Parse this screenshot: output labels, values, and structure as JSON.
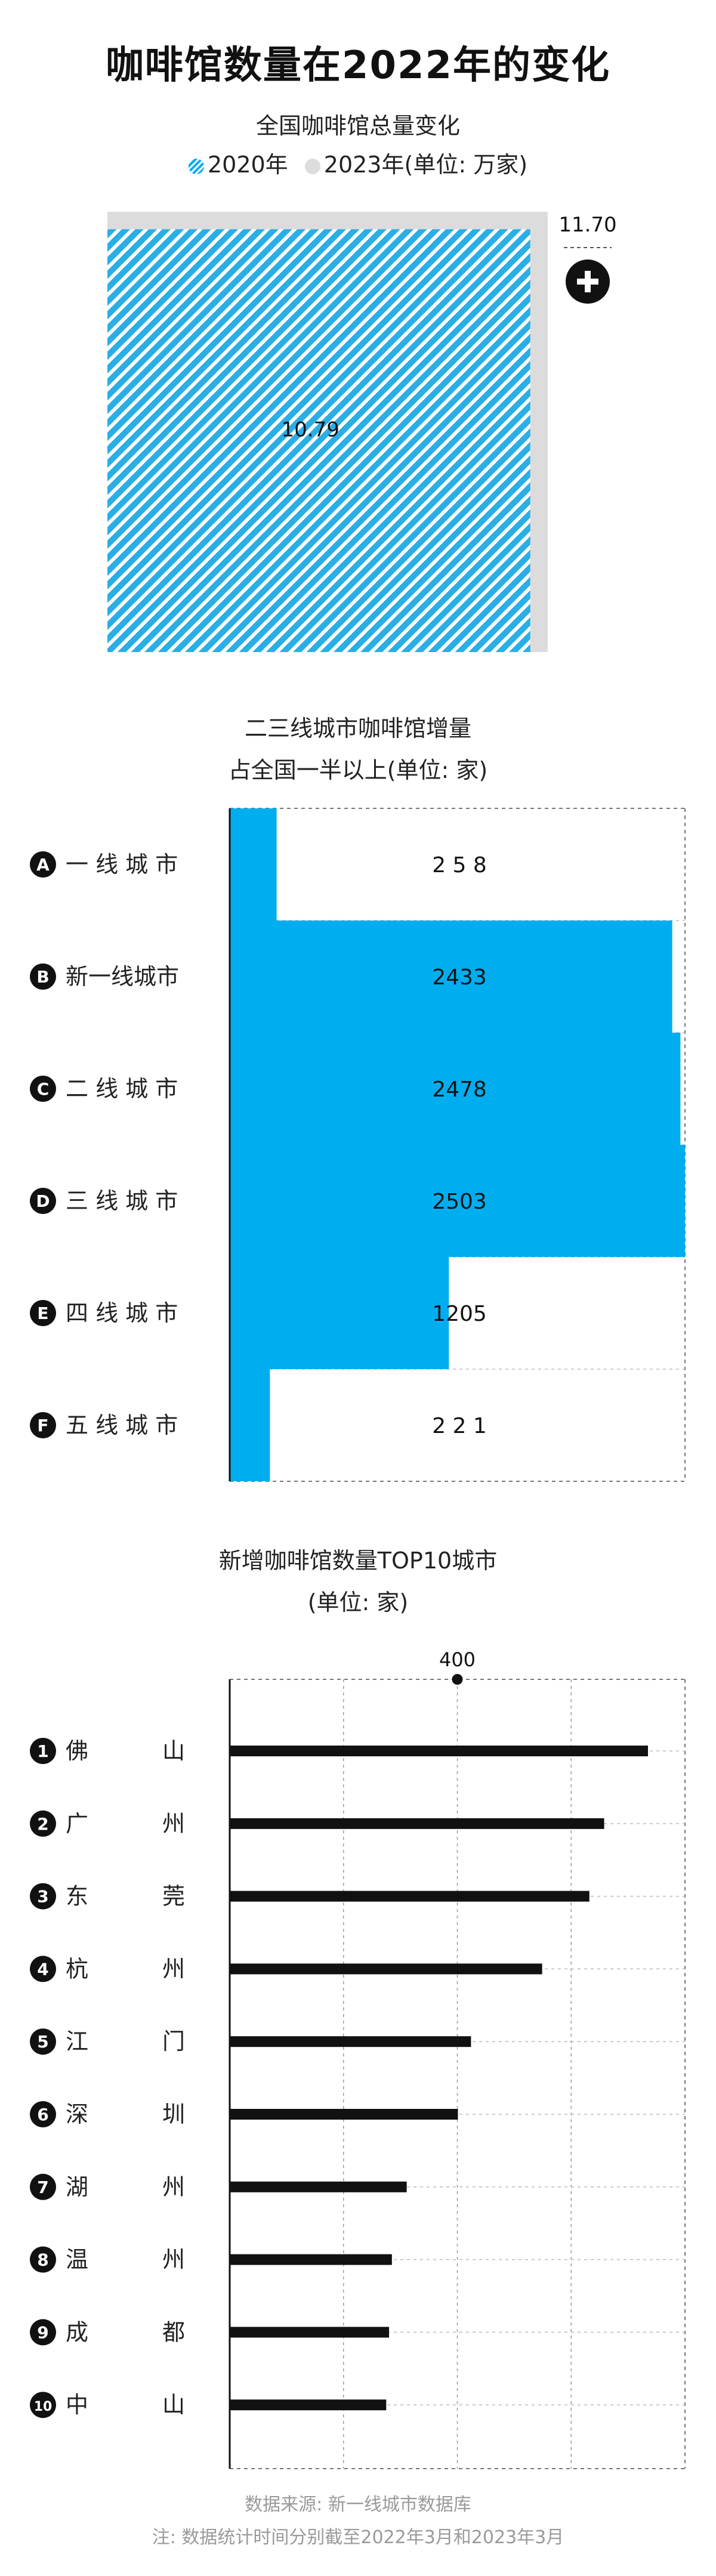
{
  "title": "咖啡馆数量在2022年的变化",
  "colors": {
    "blue": "#00aeef",
    "gray": "#dcdcdc",
    "black": "#111111",
    "dash": "#777777"
  },
  "section1": {
    "subtitle": "全国咖啡馆总量变化",
    "legend": [
      {
        "label": "2020年",
        "swatch": "hatch"
      },
      {
        "label": "2023年(单位: 万家)",
        "swatch": "gray"
      }
    ],
    "value_2020_label": "10.79",
    "value_2023_label": "11.70",
    "plus_icon": "plus-icon"
  },
  "section2": {
    "subtitle1": "二三线城市咖啡馆增量",
    "subtitle2": "占全国一半以上(单位: 家)"
  },
  "section3": {
    "subtitle1": "新增咖啡馆数量TOP10城市",
    "subtitle2": "(单位: 家)",
    "marker_label": "400"
  },
  "footer": {
    "source": "数据来源: 新一线城市数据库",
    "note": "注: 数据统计时间分别截至2022年3月和2023年3月"
  },
  "chart_data": [
    {
      "type": "area",
      "title": "全国咖啡馆总量变化",
      "series": [
        {
          "name": "2020年",
          "values": [
            10.79
          ]
        },
        {
          "name": "2023年",
          "values": [
            11.7
          ]
        }
      ],
      "unit": "万家"
    },
    {
      "type": "bar",
      "title": "二三线城市咖啡馆增量",
      "subtitle": "占全国一半以上(单位: 家)",
      "markers": [
        "A",
        "B",
        "C",
        "D",
        "E",
        "F"
      ],
      "categories": [
        "一线城市",
        "新一线城市",
        "二线城市",
        "三线城市",
        "四线城市",
        "五线城市"
      ],
      "display_labels": [
        "一 线 城 市",
        "新一线城市",
        "二 线 城 市",
        "三 线 城 市",
        "四 线 城 市",
        "五 线 城 市"
      ],
      "values": [
        258,
        2433,
        2478,
        2503,
        1205,
        221
      ],
      "value_labels": [
        "2 5 8",
        "2433",
        "2478",
        "2503",
        "1205",
        "2 2 1"
      ],
      "xlim": [
        0,
        2503
      ]
    },
    {
      "type": "bar",
      "title": "新增咖啡馆数量TOP10城市",
      "subtitle": "(单位: 家)",
      "ranks": [
        "1",
        "2",
        "3",
        "4",
        "5",
        "6",
        "7",
        "8",
        "9",
        "10"
      ],
      "categories": [
        "佛山",
        "广州",
        "东莞",
        "杭州",
        "江门",
        "深圳",
        "湖州",
        "温州",
        "成都",
        "中山"
      ],
      "values": [
        735,
        658,
        632,
        549,
        424,
        401,
        311,
        285,
        280,
        275
      ],
      "xlim": [
        0,
        800
      ],
      "marker": 400,
      "grid": true
    }
  ]
}
